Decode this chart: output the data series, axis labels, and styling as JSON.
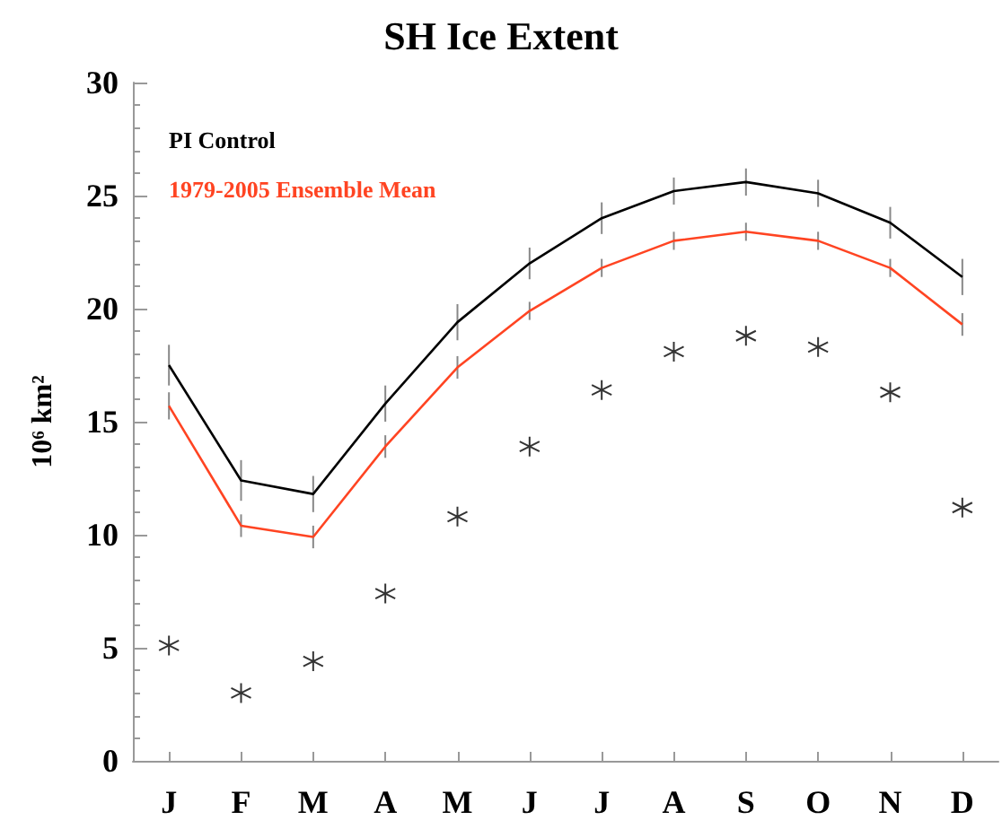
{
  "chart_data": {
    "type": "line",
    "title": "SH Ice Extent",
    "ylabel": "10⁶ km²",
    "categories": [
      "J",
      "F",
      "M",
      "A",
      "M",
      "J",
      "J",
      "A",
      "S",
      "O",
      "N",
      "D"
    ],
    "series": [
      {
        "name": "PI Control",
        "color": "#000000",
        "marker": "none",
        "values": [
          17.5,
          12.4,
          11.8,
          15.8,
          19.4,
          22.0,
          24.0,
          25.2,
          25.6,
          25.1,
          23.8,
          21.4
        ],
        "errors": [
          0.9,
          0.9,
          0.8,
          0.8,
          0.8,
          0.7,
          0.7,
          0.6,
          0.6,
          0.6,
          0.7,
          0.8
        ]
      },
      {
        "name": "1979-2005 Ensemble Mean",
        "color": "#ff4422",
        "marker": "none",
        "values": [
          15.7,
          10.4,
          9.9,
          13.9,
          17.4,
          19.9,
          21.8,
          23.0,
          23.4,
          23.0,
          21.8,
          19.3
        ],
        "errors": [
          0.6,
          0.5,
          0.5,
          0.5,
          0.5,
          0.4,
          0.4,
          0.4,
          0.4,
          0.4,
          0.4,
          0.5
        ]
      },
      {
        "type": "scatter",
        "color": "#000000",
        "marker": "cross",
        "values": [
          5.1,
          3.0,
          4.4,
          7.4,
          10.8,
          13.9,
          16.4,
          18.1,
          18.8,
          18.3,
          16.3,
          11.2
        ]
      }
    ],
    "ylim": [
      0,
      30
    ],
    "yticks": [
      0,
      5,
      10,
      15,
      20,
      25,
      30
    ],
    "grid": false,
    "legend": "top left"
  }
}
